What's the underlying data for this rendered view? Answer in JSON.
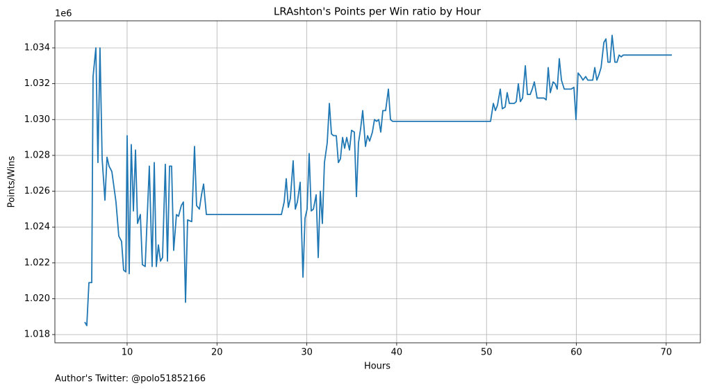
{
  "chart_data": {
    "type": "line",
    "title": "LRAshton's Points per Win ratio by Hour",
    "xlabel": "Hours",
    "ylabel": "Points/Wins",
    "y_offset_label": "1e6",
    "footer": "Author's Twitter: @polo51852166",
    "color": "#1f77b4",
    "grid": true,
    "xlim": [
      1.96,
      73.8
    ],
    "ylim": [
      1.01754,
      1.03551
    ],
    "xticks": [
      10,
      20,
      30,
      40,
      50,
      60,
      70
    ],
    "yticks": [
      1.018,
      {
        "value": 1.02,
        "label": "1.020"
      },
      1.022,
      1.024,
      1.026,
      1.028,
      {
        "value": 1.03,
        "label": "1.030"
      },
      1.032,
      1.034
    ],
    "x": [
      5.28,
      5.51,
      5.75,
      6.06,
      6.21,
      6.52,
      6.75,
      6.98,
      7.22,
      7.53,
      7.76,
      7.99,
      8.3,
      8.76,
      9.07,
      9.38,
      9.61,
      9.85,
      10.0,
      10.23,
      10.46,
      10.7,
      10.93,
      11.16,
      11.47,
      11.7,
      12.01,
      12.47,
      12.78,
      13.02,
      13.25,
      13.48,
      13.71,
      13.94,
      14.25,
      14.49,
      14.72,
      14.95,
      15.18,
      15.49,
      15.72,
      16.03,
      16.26,
      16.5,
      16.73,
      17.19,
      17.5,
      17.73,
      18.04,
      18.28,
      18.51,
      18.82,
      27.17,
      27.48,
      27.71,
      27.94,
      28.17,
      28.48,
      28.72,
      28.95,
      29.26,
      29.57,
      29.8,
      30.03,
      30.26,
      30.49,
      30.73,
      31.04,
      31.27,
      31.5,
      31.73,
      31.96,
      32.27,
      32.51,
      32.74,
      32.97,
      33.28,
      33.51,
      33.74,
      33.98,
      34.21,
      34.44,
      34.75,
      34.98,
      35.29,
      35.52,
      35.75,
      35.99,
      36.22,
      36.53,
      36.76,
      36.99,
      37.3,
      37.53,
      37.77,
      38.0,
      38.23,
      38.46,
      38.77,
      39.08,
      39.31,
      39.54,
      50.45,
      50.76,
      50.99,
      51.22,
      51.53,
      51.76,
      52.07,
      52.3,
      52.54,
      52.85,
      53.08,
      53.31,
      53.54,
      53.77,
      54.01,
      54.32,
      54.55,
      54.86,
      55.09,
      55.32,
      55.63,
      55.86,
      56.09,
      56.4,
      56.64,
      56.87,
      57.1,
      57.41,
      57.64,
      57.87,
      58.1,
      58.34,
      58.65,
      58.88,
      59.42,
      59.73,
      59.96,
      60.19,
      60.5,
      60.73,
      61.04,
      61.27,
      61.59,
      61.82,
      62.05,
      62.28,
      62.51,
      62.75,
      63.06,
      63.29,
      63.52,
      63.75,
      63.98,
      64.29,
      64.52,
      64.76,
      64.99,
      65.22,
      65.53,
      70.63
    ],
    "values": [
      1.0187,
      1.0185,
      1.0209,
      1.0209,
      1.0324,
      1.034,
      1.0276,
      1.034,
      1.0278,
      1.0255,
      1.0279,
      1.0274,
      1.0271,
      1.0254,
      1.0235,
      1.0232,
      1.0216,
      1.0215,
      1.0291,
      1.0214,
      1.0286,
      1.0249,
      1.0283,
      1.0242,
      1.0247,
      1.0219,
      1.0218,
      1.0274,
      1.0218,
      1.0276,
      1.0218,
      1.023,
      1.0221,
      1.0223,
      1.0275,
      1.0221,
      1.0274,
      1.0274,
      1.0227,
      1.0247,
      1.0246,
      1.0252,
      1.0254,
      1.0198,
      1.0244,
      1.0243,
      1.0285,
      1.0252,
      1.025,
      1.0258,
      1.0264,
      1.0247,
      1.0247,
      1.0254,
      1.0267,
      1.0251,
      1.0256,
      1.0277,
      1.025,
      1.0254,
      1.0265,
      1.0212,
      1.0245,
      1.025,
      1.0281,
      1.0249,
      1.025,
      1.0258,
      1.0223,
      1.026,
      1.0242,
      1.0276,
      1.0287,
      1.0309,
      1.0292,
      1.0291,
      1.0291,
      1.0276,
      1.0278,
      1.029,
      1.0284,
      1.029,
      1.0283,
      1.0294,
      1.0293,
      1.0257,
      1.0287,
      1.0295,
      1.0305,
      1.0285,
      1.0291,
      1.0288,
      1.0293,
      1.03,
      1.0299,
      1.03,
      1.0293,
      1.0305,
      1.0305,
      1.0317,
      1.03,
      1.0299,
      1.0299,
      1.0309,
      1.0305,
      1.0308,
      1.0317,
      1.0306,
      1.0307,
      1.0315,
      1.0309,
      1.0309,
      1.0309,
      1.031,
      1.032,
      1.031,
      1.0312,
      1.033,
      1.0314,
      1.0314,
      1.0317,
      1.0321,
      1.0312,
      1.0312,
      1.0312,
      1.0312,
      1.0311,
      1.0329,
      1.0315,
      1.0321,
      1.032,
      1.0317,
      1.0334,
      1.0322,
      1.0317,
      1.0317,
      1.0317,
      1.0318,
      1.03,
      1.0326,
      1.0324,
      1.0322,
      1.0324,
      1.0322,
      1.0322,
      1.0322,
      1.0329,
      1.0322,
      1.0325,
      1.0329,
      1.0343,
      1.0345,
      1.0332,
      1.0332,
      1.0347,
      1.0332,
      1.0332,
      1.0336,
      1.0335,
      1.0336,
      1.0336,
      1.0336
    ]
  }
}
